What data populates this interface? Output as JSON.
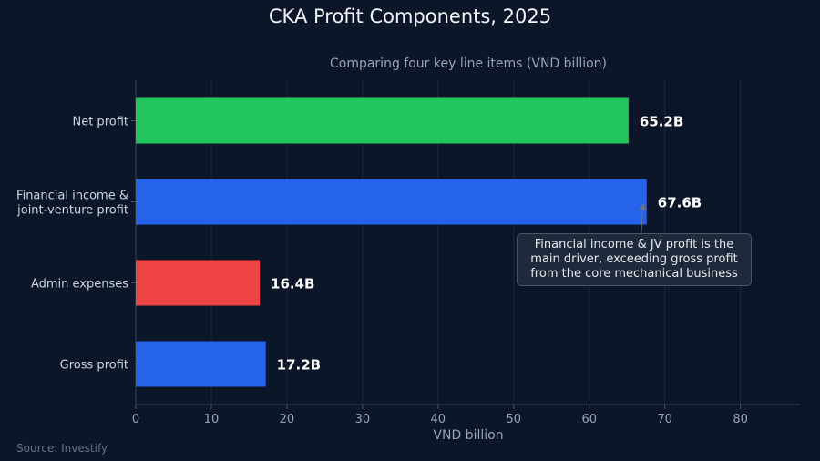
{
  "chart_data": {
    "type": "bar",
    "orientation": "horizontal",
    "title": "CKA Profit Components, 2025",
    "subtitle": "Comparing four key line items (VND billion)",
    "xlabel": "VND billion",
    "xlim": [
      0,
      88
    ],
    "xticks": [
      0,
      10,
      20,
      30,
      40,
      50,
      60,
      70,
      80
    ],
    "grid": true,
    "categories": [
      "Net profit",
      "Financial income & joint-venture profit",
      "Admin expenses",
      "Gross profit"
    ],
    "category_lines": [
      [
        "Net profit"
      ],
      [
        "Financial income &",
        "joint-venture profit"
      ],
      [
        "Admin expenses"
      ],
      [
        "Gross profit"
      ]
    ],
    "values": [
      65.2,
      67.6,
      16.4,
      17.2
    ],
    "value_labels": [
      "65.2B",
      "67.6B",
      "16.4B",
      "17.2B"
    ],
    "colors": [
      "#22c55e",
      "#2563eb",
      "#ef4444",
      "#2563eb"
    ],
    "annotation": {
      "text": "Financial income & JV profit is the main driver, exceeding gross profit from the core mechanical business",
      "target_category": "Financial income & joint-venture profit",
      "target_value": 67.6
    },
    "source": "Source: Investify"
  }
}
